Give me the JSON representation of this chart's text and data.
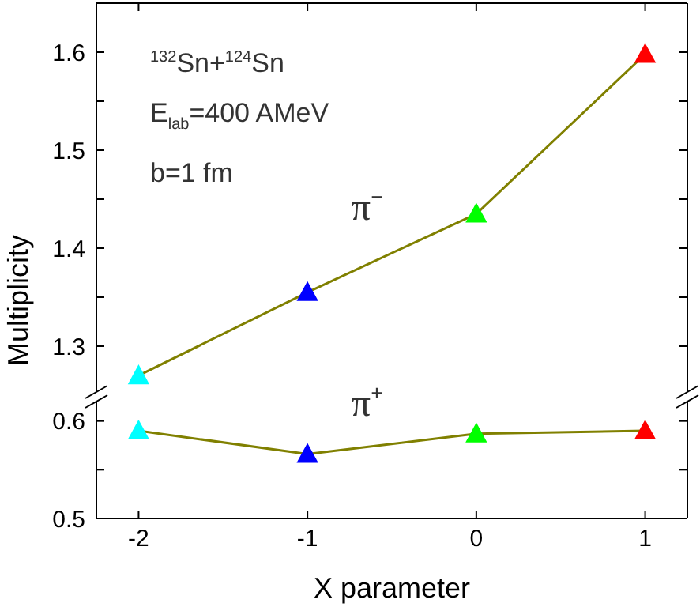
{
  "chart_data": [
    {
      "type": "line",
      "ylabel": "Multiplicity",
      "annotations": [
        "$^{132}$Sn+$^{124}$Sn",
        "E$_{lab}$=400 AMeV",
        "b=1 fm"
      ],
      "x": [
        -2,
        -1,
        0,
        1
      ],
      "xlim": [
        -2.25,
        1.25
      ],
      "xticks": [
        -2,
        -1,
        0,
        1
      ],
      "ylim": [
        1.25,
        1.65
      ],
      "yticks": [
        1.3,
        {
          "value": 1.35,
          "label": null
        },
        1.4,
        {
          "value": 1.45,
          "label": null
        },
        1.5,
        {
          "value": 1.55,
          "label": null
        },
        1.6
      ],
      "tick_labels": "y",
      "marker": "triangle",
      "series": [
        {
          "name": "π⁻",
          "color": "#808000",
          "colors": [
            "#00ffff",
            "#0000ff",
            "#00ff00",
            "#ff0000"
          ],
          "values": [
            1.27,
            1.355,
            1.435,
            1.598
          ]
        }
      ]
    },
    {
      "type": "line",
      "xlabel": "X parameter",
      "x": [
        -2,
        -1,
        0,
        1
      ],
      "xlim": [
        -2.25,
        1.25
      ],
      "xticks": [
        -2,
        -1,
        0,
        1
      ],
      "ylim": [
        0.5,
        0.62
      ],
      "yticks": [
        0.5,
        {
          "value": 0.55,
          "label": null
        },
        0.6
      ],
      "marker": "triangle",
      "series": [
        {
          "name": "π⁺",
          "color": "#808000",
          "colors": [
            "#00ffff",
            "#0000ff",
            "#00ff00",
            "#ff0000"
          ],
          "values": [
            0.59,
            0.566,
            0.587,
            0.59
          ]
        }
      ]
    }
  ]
}
